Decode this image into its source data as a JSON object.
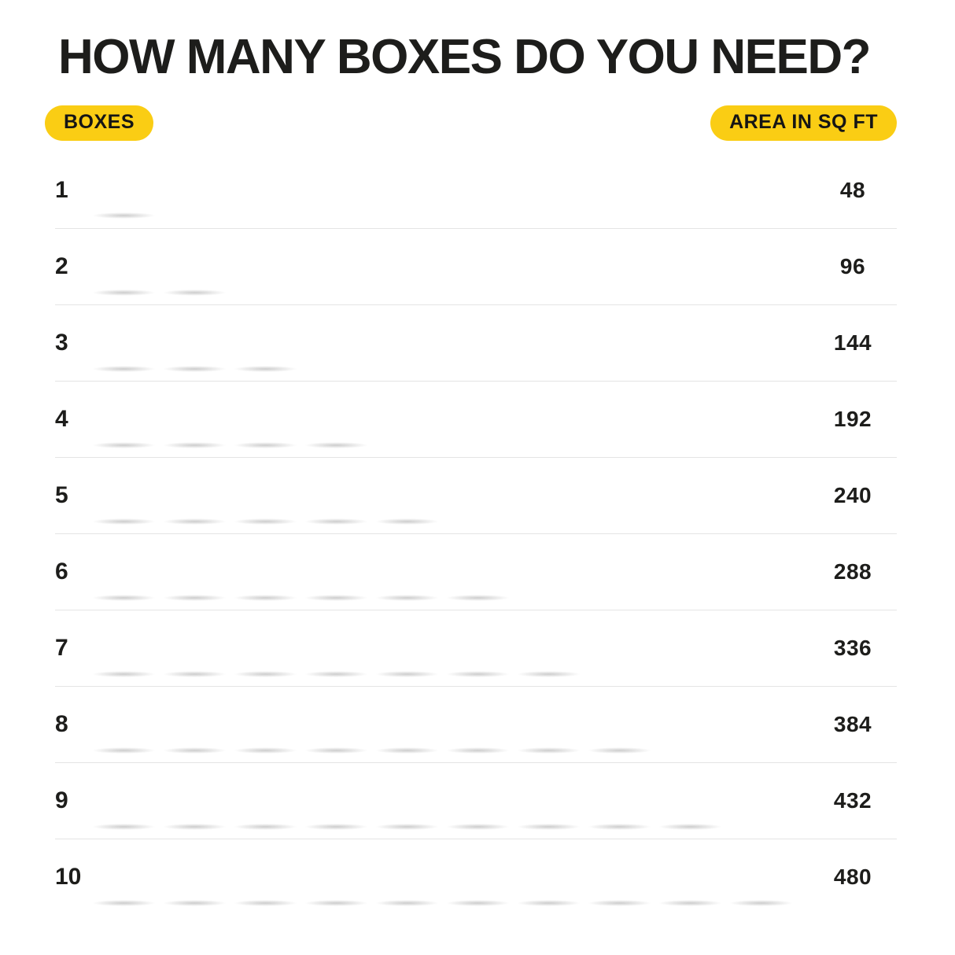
{
  "title": "HOW MANY BOXES DO YOU NEED?",
  "legend": {
    "boxes_badge": "BOXES",
    "area_badge": "AREA IN SQ FT"
  },
  "colors": {
    "badge_yellow": "#FACD14",
    "ink": "#1D1D1B",
    "separator": "#E4E4E4",
    "box_front": "#D2A87A",
    "box_lid": "#E4C296",
    "tile_brown": "#8E6E4B"
  },
  "chart_data": {
    "type": "bar",
    "style": "pictogram",
    "title": "HOW MANY BOXES DO YOU NEED?",
    "xlabel": "BOXES",
    "ylabel": "AREA IN SQ FT",
    "categories": [
      1,
      2,
      3,
      4,
      5,
      6,
      7,
      8,
      9,
      10
    ],
    "values": [
      48,
      96,
      144,
      192,
      240,
      288,
      336,
      384,
      432,
      480
    ],
    "sq_ft_per_box": 48,
    "legend_position": "top",
    "grid": "horizontal-separators",
    "rows": [
      {
        "boxes": 1,
        "area": 48
      },
      {
        "boxes": 2,
        "area": 96
      },
      {
        "boxes": 3,
        "area": 144
      },
      {
        "boxes": 4,
        "area": 192
      },
      {
        "boxes": 5,
        "area": 240
      },
      {
        "boxes": 6,
        "area": 288
      },
      {
        "boxes": 7,
        "area": 336
      },
      {
        "boxes": 8,
        "area": 384
      },
      {
        "boxes": 9,
        "area": 432
      },
      {
        "boxes": 10,
        "area": 480
      }
    ]
  }
}
